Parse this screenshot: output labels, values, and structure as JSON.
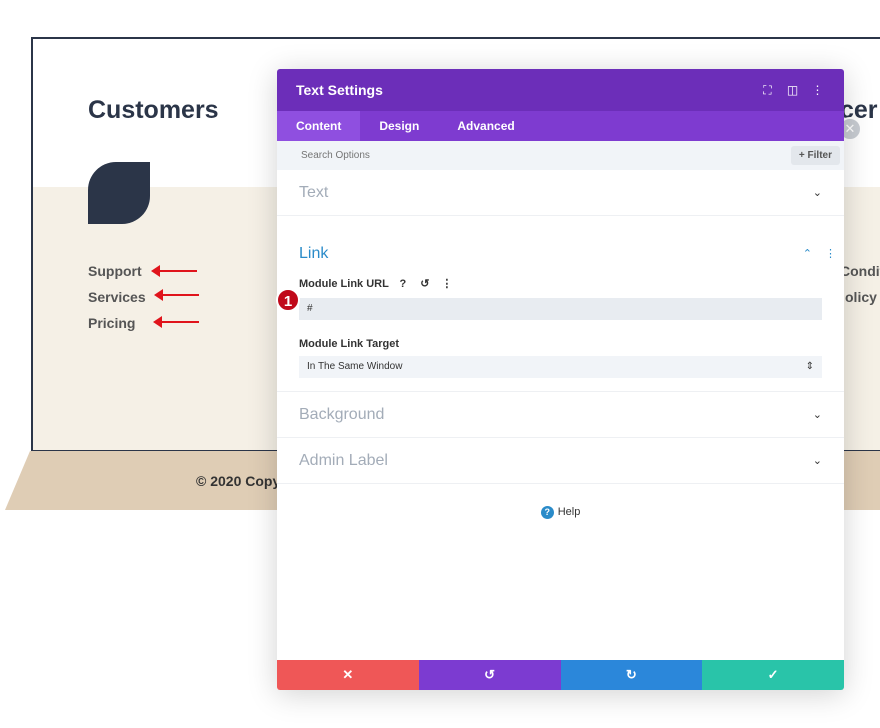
{
  "background_page": {
    "title": "Customers",
    "links": [
      "Support",
      "Services",
      "Pricing"
    ],
    "copyright": "© 2020 Copy",
    "right_title_peek": "cer",
    "right_links_peek": [
      "Condit",
      "olicy"
    ]
  },
  "modal": {
    "title": "Text Settings",
    "header_icons": [
      "expand-icon",
      "split-view-icon",
      "more-options-icon"
    ],
    "tabs": [
      {
        "label": "Content",
        "active": true
      },
      {
        "label": "Design",
        "active": false
      },
      {
        "label": "Advanced",
        "active": false
      }
    ],
    "search": {
      "placeholder": "Search Options",
      "filter_label": "+ Filter"
    },
    "sections": {
      "text": {
        "label": "Text"
      },
      "link": {
        "label": "Link",
        "url_label": "Module Link URL",
        "url_value": "#",
        "target_label": "Module Link Target",
        "target_value": "In The Same Window"
      },
      "background": {
        "label": "Background"
      },
      "admin": {
        "label": "Admin Label"
      }
    },
    "help_label": "Help",
    "step_badge": "1",
    "footer_colors": {
      "cancel": "#ef5757",
      "undo": "#7c3bd1",
      "redo": "#2b87da",
      "save": "#29c4a9"
    }
  }
}
